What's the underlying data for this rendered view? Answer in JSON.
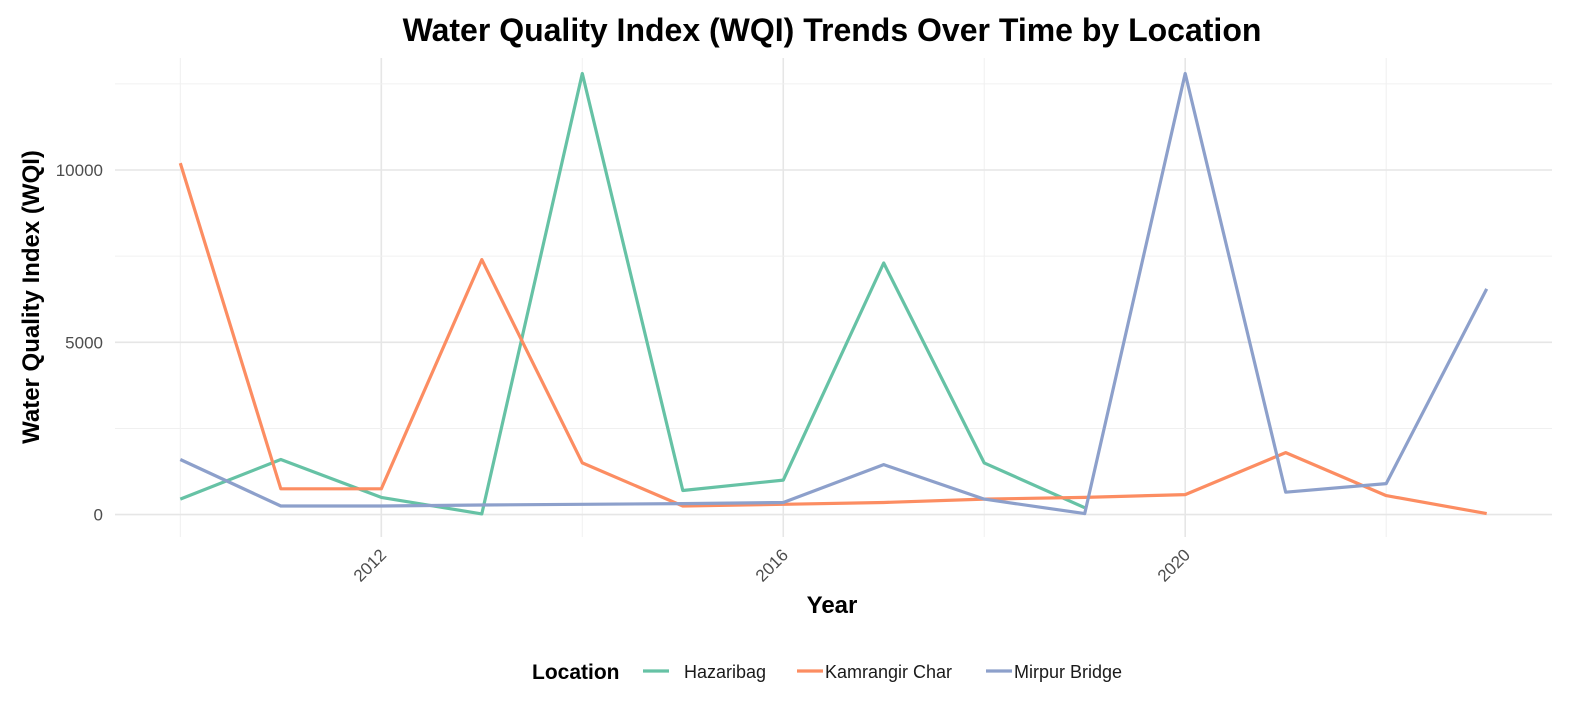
{
  "chart_data": {
    "type": "line",
    "title": "Water Quality Index (WQI) Trends Over Time by Location",
    "xlabel": "Year",
    "ylabel": "Water Quality Index (WQI)",
    "x": [
      2010,
      2011,
      2012,
      2013,
      2014,
      2015,
      2016,
      2017,
      2018,
      2019,
      2020,
      2021,
      2022,
      2023
    ],
    "xticks": [
      2012,
      2016,
      2020
    ],
    "yticks": [
      0,
      5000,
      10000
    ],
    "xlim": [
      2009.35,
      2023.65
    ],
    "ylim": [
      -650,
      13250
    ],
    "grid": true,
    "legend": {
      "title": "Location",
      "position": "bottom"
    },
    "series": [
      {
        "name": "Hazaribag",
        "color": "#66C2A5",
        "values": [
          450,
          1600,
          500,
          20,
          12800,
          700,
          1000,
          7300,
          1500,
          200,
          null,
          null,
          null,
          null
        ]
      },
      {
        "name": "Kamrangir Char",
        "color": "#FC8D62",
        "values": [
          10200,
          750,
          750,
          7400,
          1500,
          250,
          300,
          350,
          450,
          500,
          580,
          1800,
          550,
          30
        ]
      },
      {
        "name": "Mirpur Bridge",
        "color": "#8DA0CB",
        "values": [
          1600,
          250,
          250,
          280,
          300,
          320,
          350,
          1450,
          450,
          30,
          12800,
          650,
          900,
          6550
        ]
      }
    ]
  }
}
